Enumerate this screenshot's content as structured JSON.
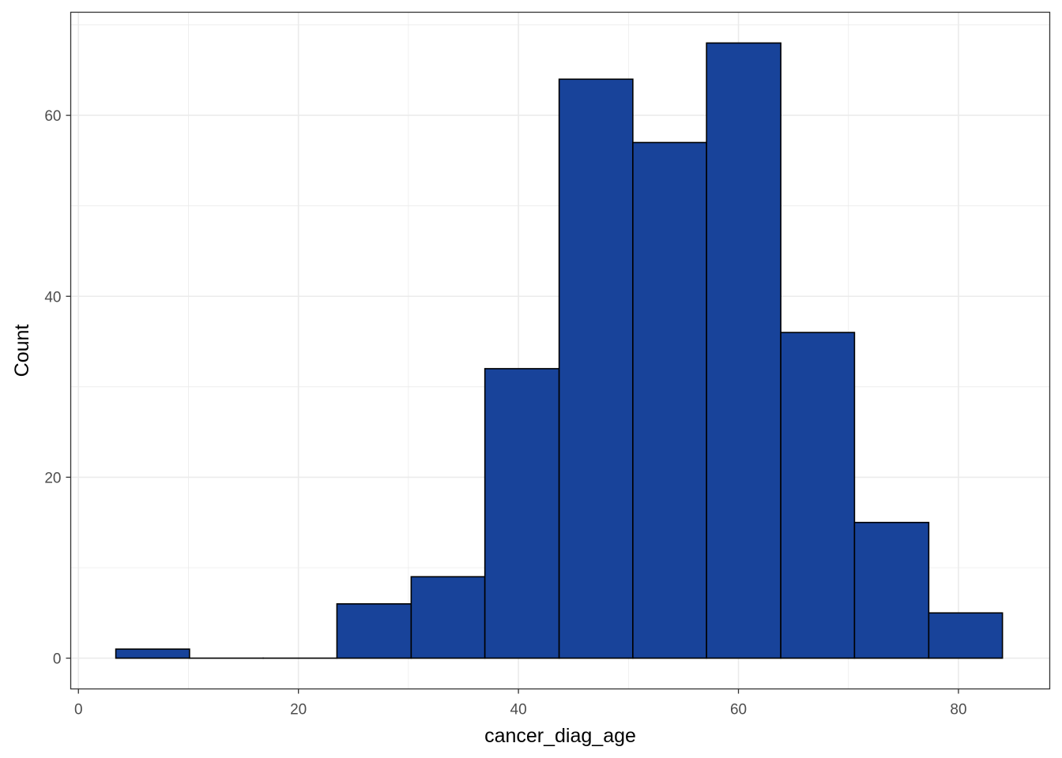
{
  "chart_data": {
    "type": "bar",
    "subtype": "histogram",
    "title": "",
    "xlabel": "cancer_diag_age",
    "ylabel": "Count",
    "xlim": [
      -0.7,
      88.3
    ],
    "ylim": [
      -3.4,
      71.4
    ],
    "x_ticks": [
      0,
      20,
      40,
      60,
      80
    ],
    "y_ticks": [
      0,
      20,
      40,
      60
    ],
    "x_tick_labels": [
      "0",
      "20",
      "40",
      "60",
      "80"
    ],
    "y_tick_labels": [
      "0",
      "20",
      "40",
      "60"
    ],
    "bins": [
      {
        "x_min": 3.4,
        "x_max": 10.1,
        "count": 1
      },
      {
        "x_min": 10.1,
        "x_max": 16.8,
        "count": 0
      },
      {
        "x_min": 16.8,
        "x_max": 23.5,
        "count": 0
      },
      {
        "x_min": 23.5,
        "x_max": 30.25,
        "count": 6
      },
      {
        "x_min": 30.25,
        "x_max": 36.95,
        "count": 9
      },
      {
        "x_min": 36.95,
        "x_max": 43.7,
        "count": 32
      },
      {
        "x_min": 43.7,
        "x_max": 50.4,
        "count": 64
      },
      {
        "x_min": 50.4,
        "x_max": 57.1,
        "count": 57
      },
      {
        "x_min": 57.1,
        "x_max": 63.85,
        "count": 68
      },
      {
        "x_min": 63.85,
        "x_max": 70.55,
        "count": 36
      },
      {
        "x_min": 70.55,
        "x_max": 77.3,
        "count": 15
      },
      {
        "x_min": 77.3,
        "x_max": 84.0,
        "count": 5
      }
    ],
    "grid": true,
    "legend": "none",
    "colors": {
      "bar_fill": "#18439A",
      "bar_stroke": "#000000",
      "grid": "#ebebeb",
      "panel_border": "#333333",
      "tick_text": "#4d4d4d",
      "axis_title": "#000000"
    }
  }
}
